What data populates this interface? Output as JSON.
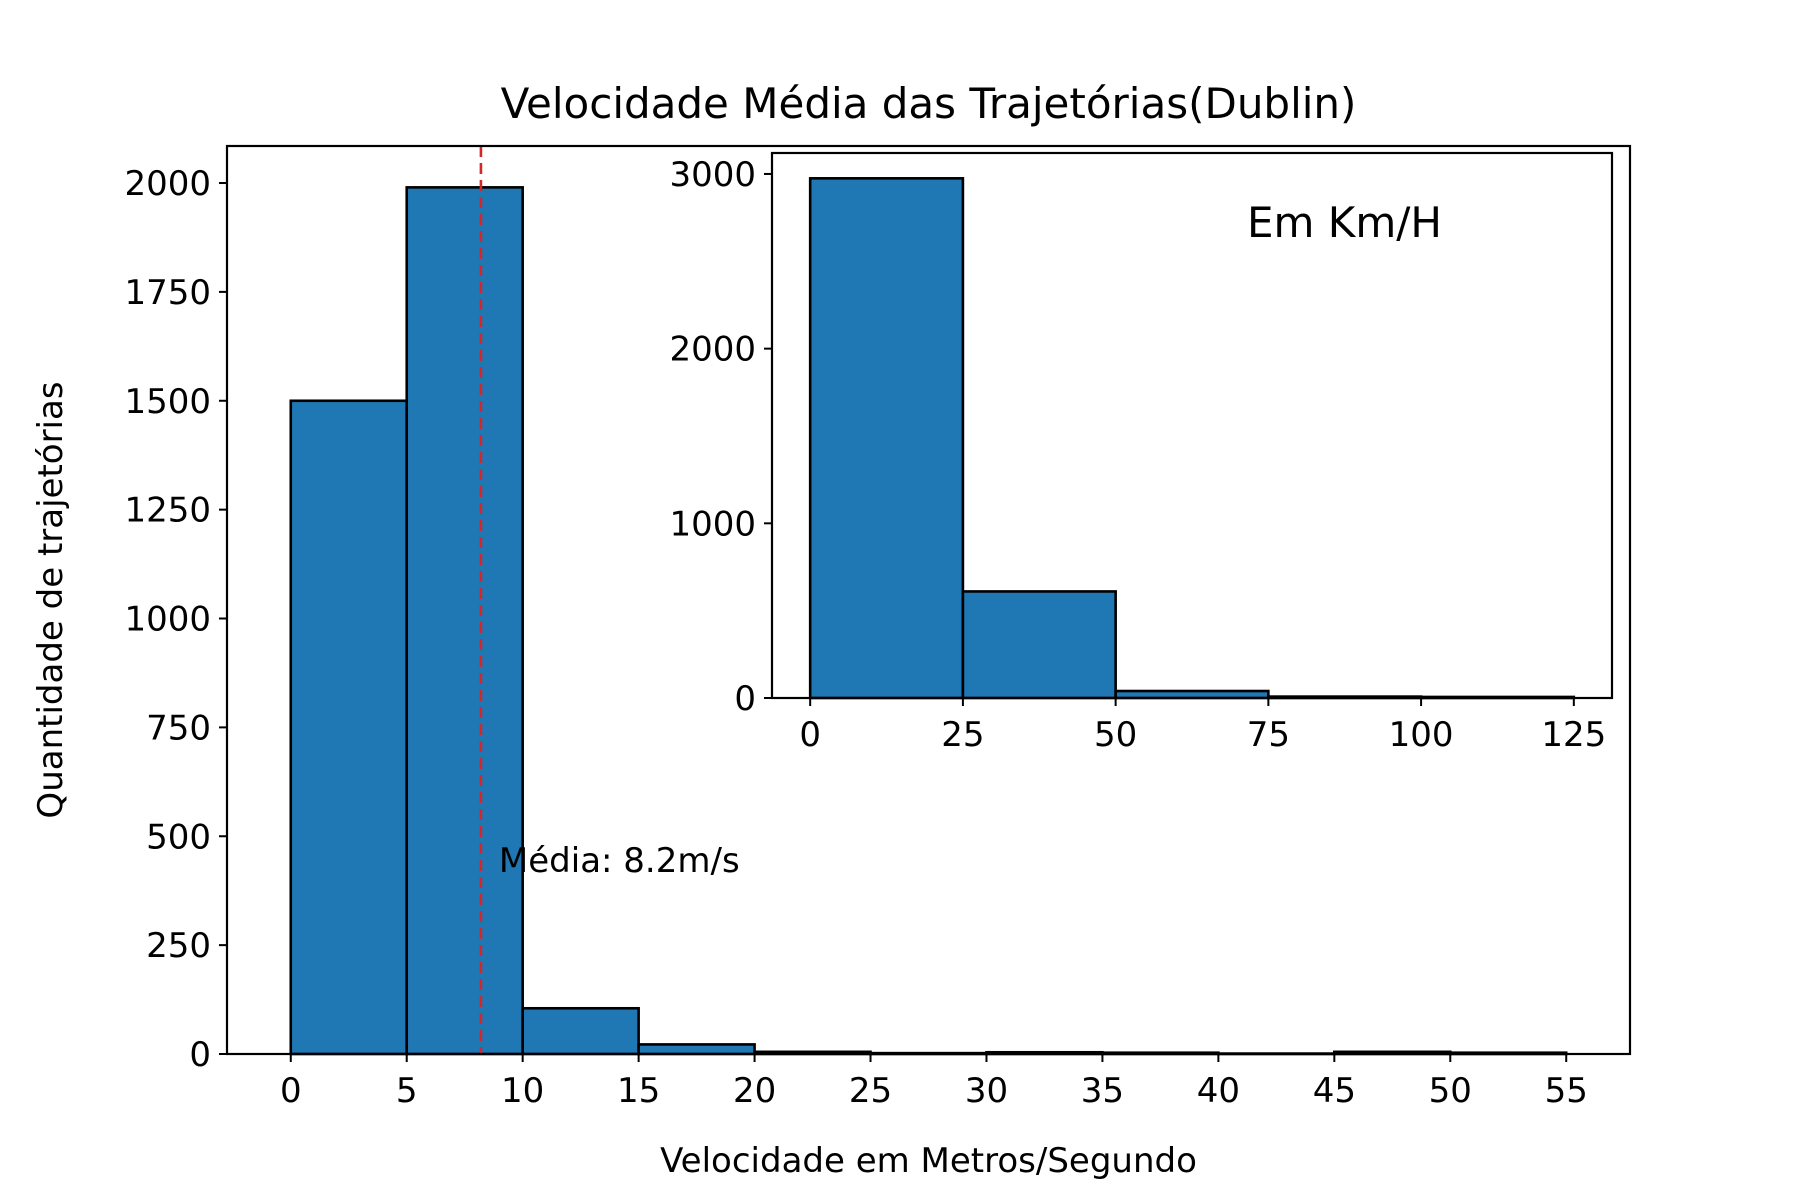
{
  "chart_data": {
    "main": {
      "type": "bar",
      "title": "Velocidade Média das Trajetórias(Dublin)",
      "xlabel": "Velocidade em Metros/Segundo",
      "ylabel": "Quantidade de trajetórias",
      "xlim": [
        -2.75,
        57.75
      ],
      "ylim": [
        0,
        2085
      ],
      "xticks": [
        0,
        5,
        10,
        15,
        20,
        25,
        30,
        35,
        40,
        45,
        50,
        55
      ],
      "yticks": [
        0,
        250,
        500,
        750,
        1000,
        1250,
        1500,
        1750,
        2000
      ],
      "bins": [
        {
          "x0": 0,
          "x1": 5,
          "value": 1500
        },
        {
          "x0": 5,
          "x1": 10,
          "value": 1990
        },
        {
          "x0": 10,
          "x1": 15,
          "value": 105
        },
        {
          "x0": 15,
          "x1": 20,
          "value": 22
        },
        {
          "x0": 20,
          "x1": 25,
          "value": 5
        },
        {
          "x0": 25,
          "x1": 30,
          "value": 2
        },
        {
          "x0": 30,
          "x1": 35,
          "value": 4
        },
        {
          "x0": 35,
          "x1": 40,
          "value": 3
        },
        {
          "x0": 40,
          "x1": 45,
          "value": 1
        },
        {
          "x0": 45,
          "x1": 50,
          "value": 5
        },
        {
          "x0": 50,
          "x1": 55,
          "value": 3
        }
      ],
      "mean_line": {
        "x": 8.2,
        "color": "#d62728",
        "label": "Média: 8.2m/s"
      },
      "bar_color": "#1f77b4",
      "edge_color": "#000000"
    },
    "inset": {
      "type": "bar",
      "annotation": "Em Km/H",
      "xlim": [
        -6.25,
        131.25
      ],
      "ylim": [
        0,
        3120
      ],
      "xticks": [
        0,
        25,
        50,
        75,
        100,
        125
      ],
      "yticks": [
        0,
        1000,
        2000,
        3000
      ],
      "bins": [
        {
          "x0": 0,
          "x1": 25,
          "value": 2975
        },
        {
          "x0": 25,
          "x1": 50,
          "value": 610
        },
        {
          "x0": 50,
          "x1": 75,
          "value": 40
        },
        {
          "x0": 75,
          "x1": 100,
          "value": 8
        },
        {
          "x0": 100,
          "x1": 125,
          "value": 6
        }
      ],
      "bar_color": "#1f77b4",
      "edge_color": "#000000"
    }
  }
}
